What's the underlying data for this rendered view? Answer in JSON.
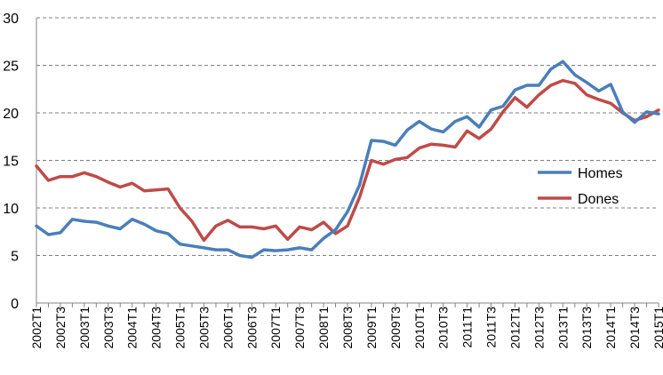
{
  "chart_data": {
    "type": "line",
    "title": "",
    "xlabel": "",
    "ylabel": "",
    "ylim": [
      0,
      30
    ],
    "yticks": [
      "0",
      "5",
      "10",
      "15",
      "20",
      "25",
      "30"
    ],
    "grid": "horizontal",
    "legend_position": "right",
    "categories": [
      "2002T1",
      "2002T2",
      "2002T3",
      "2002T4",
      "2003T1",
      "2003T2",
      "2003T3",
      "2003T4",
      "2004T1",
      "2004T2",
      "2004T3",
      "2004T4",
      "2005T1",
      "2005T2",
      "2005T3",
      "2005T4",
      "2006T1",
      "2006T2",
      "2006T3",
      "2006T4",
      "2007T1",
      "2007T2",
      "2007T3",
      "2007T4",
      "2008T1",
      "2008T2",
      "2008T3",
      "2008T4",
      "2009T1",
      "2009T2",
      "2009T3",
      "2009T4",
      "2010T1",
      "2010T2",
      "2010T3",
      "2010T4",
      "2011T1",
      "2011T2",
      "2011T3",
      "2011T4",
      "2012T1",
      "2012T2",
      "2012T3",
      "2012T4",
      "2013T1",
      "2013T2",
      "2013T3",
      "2013T4",
      "2014T1",
      "2014T2",
      "2014T3",
      "2014T4",
      "2015T1"
    ],
    "tick_labels": [
      "2002T1",
      "2002T3",
      "2003T1",
      "2003T3",
      "2004T1",
      "2004T3",
      "2005T1",
      "2005T3",
      "2006T1",
      "2006T3",
      "2007T1",
      "2007T3",
      "2008T1",
      "2008T3",
      "2009T1",
      "2009T3",
      "2010T1",
      "2010T3",
      "2011T1",
      "2011T3",
      "2012T1",
      "2012T3",
      "2013T1",
      "2013T3",
      "2014T1",
      "2014T3",
      "2015T1"
    ],
    "series": [
      {
        "name": "Homes",
        "color": "#4A7EBB",
        "values": [
          8.1,
          7.2,
          7.4,
          8.8,
          8.6,
          8.5,
          8.1,
          7.8,
          8.8,
          8.3,
          7.6,
          7.3,
          6.2,
          6.0,
          5.8,
          5.6,
          5.6,
          5.0,
          4.8,
          5.6,
          5.5,
          5.6,
          5.8,
          5.6,
          6.8,
          7.7,
          9.6,
          12.4,
          17.1,
          17.0,
          16.6,
          18.2,
          19.1,
          18.3,
          18.0,
          19.1,
          19.6,
          18.5,
          20.3,
          20.7,
          22.4,
          22.9,
          22.9,
          24.6,
          25.4,
          24.0,
          23.2,
          22.3,
          23.0,
          20.1,
          19.0,
          20.1,
          19.9
        ]
      },
      {
        "name": "Dones",
        "color": "#BE4B48",
        "values": [
          14.4,
          12.9,
          13.3,
          13.3,
          13.7,
          13.3,
          12.7,
          12.2,
          12.6,
          11.8,
          11.9,
          12.0,
          10.0,
          8.6,
          6.6,
          8.1,
          8.7,
          8.0,
          8.0,
          7.8,
          8.1,
          6.7,
          8.0,
          7.7,
          8.5,
          7.3,
          8.1,
          11.1,
          15.0,
          14.6,
          15.1,
          15.3,
          16.3,
          16.7,
          16.6,
          16.4,
          18.1,
          17.3,
          18.3,
          20.1,
          21.6,
          20.6,
          21.9,
          22.9,
          23.4,
          23.1,
          21.9,
          21.4,
          21.0,
          20.0,
          19.2,
          19.6,
          20.3
        ]
      }
    ]
  }
}
